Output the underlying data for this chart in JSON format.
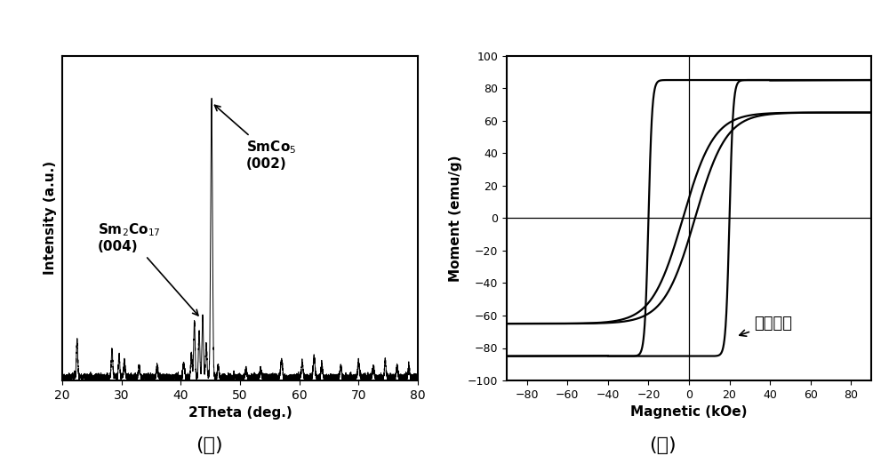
{
  "fig_width": 10.0,
  "fig_height": 5.22,
  "bg_color": "#ffffff",
  "panel_a": {
    "xlabel": "2Theta (deg.)",
    "ylabel": "Intensity (a.u.)",
    "xlim": [
      20,
      80
    ],
    "xticks": [
      20,
      30,
      40,
      50,
      60,
      70,
      80
    ],
    "noise_seed": 42
  },
  "panel_b": {
    "xlabel": "Magnetic (kOe)",
    "ylabel": "Moment (emu/g)",
    "xlim": [
      -90,
      90
    ],
    "ylim": [
      -100,
      100
    ],
    "xticks": [
      -80,
      -60,
      -40,
      -20,
      0,
      20,
      40,
      60,
      80
    ],
    "yticks": [
      -100,
      -80,
      -60,
      -40,
      -20,
      0,
      20,
      40,
      60,
      80,
      100
    ],
    "annotation": "取向方向",
    "ann_x": 32,
    "ann_y": -65,
    "arr_x": 23,
    "arr_y": -73
  },
  "label_a": "(ａ)",
  "label_b": "(ｂ)"
}
